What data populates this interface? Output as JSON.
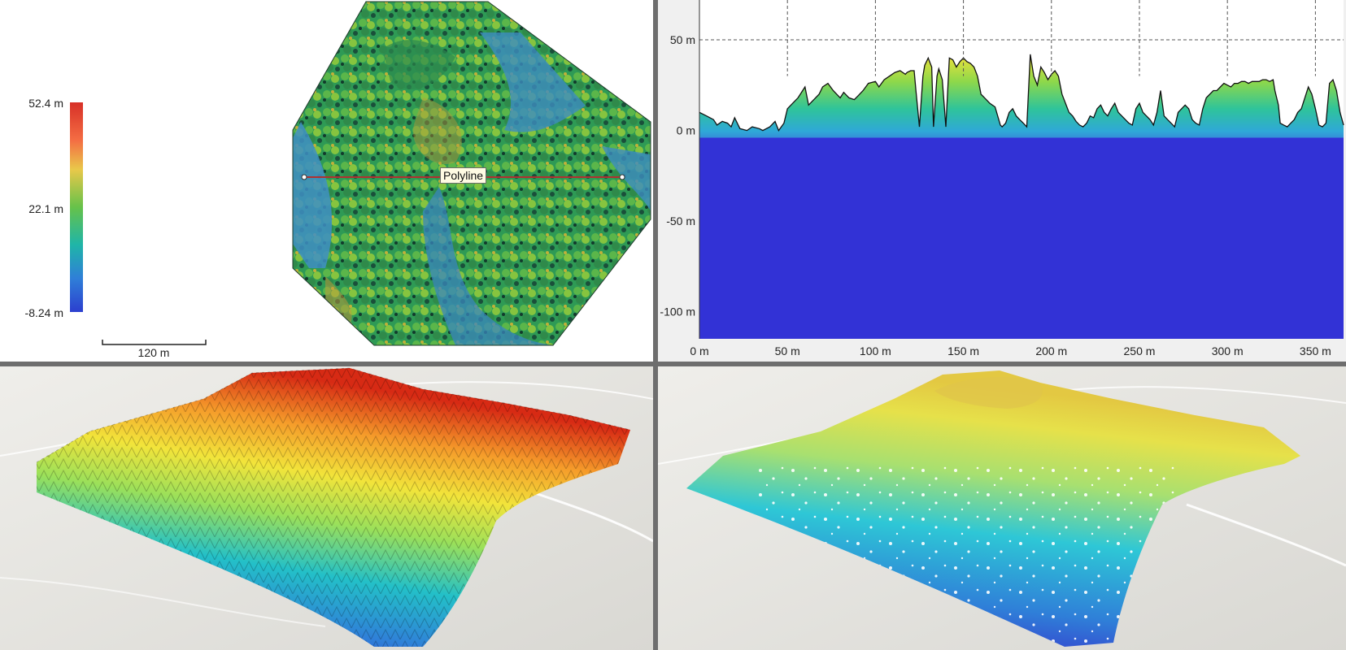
{
  "map_view": {
    "legend": {
      "max_label": "52.4 m",
      "mid_label": "22.1 m",
      "min_label": "-8.24 m",
      "colors": [
        "#d73027",
        "#f46d43",
        "#fdae61",
        "#d9ef45",
        "#66c24a",
        "#1fb5a8",
        "#2f7fd8",
        "#2c3fcf"
      ]
    },
    "scale_bar_label": "120 m",
    "polyline_label": "Polyline",
    "line_color": "#b03030"
  },
  "profile_view": {
    "ground_color": "#3232d6",
    "grid_color": "#555555",
    "chart_data": {
      "type": "area",
      "title": "",
      "xlabel": "",
      "ylabel": "",
      "xlim": [
        0,
        366
      ],
      "ylim": [
        -115,
        72
      ],
      "x_ticks": [
        0,
        50,
        100,
        150,
        200,
        250,
        300,
        350
      ],
      "x_tick_labels": [
        "0 m",
        "50 m",
        "100 m",
        "150 m",
        "200 m",
        "250 m",
        "300 m",
        "350 m"
      ],
      "y_ticks": [
        50,
        0,
        -50,
        -100
      ],
      "y_tick_labels": [
        "50 m",
        "0 m",
        "-50 m",
        "-100 m"
      ],
      "grid": "dashed",
      "series": [
        {
          "x": [
            0,
            4,
            8,
            10,
            13,
            16,
            18,
            20,
            23,
            27,
            30,
            34,
            36,
            40,
            43,
            45,
            48,
            50,
            53,
            56,
            60,
            62,
            65,
            68,
            70,
            73,
            76,
            80,
            82,
            85,
            88,
            90,
            93,
            96,
            100,
            102,
            105,
            108,
            111,
            114,
            117,
            118,
            120,
            122,
            123,
            125,
            127,
            128,
            130,
            132,
            133,
            135,
            136,
            138,
            140,
            142,
            144,
            146,
            148,
            150,
            152,
            154,
            156,
            158,
            160,
            162,
            165,
            168,
            171,
            172,
            174,
            176,
            178,
            180,
            182,
            184,
            186,
            188,
            190,
            192,
            194,
            196,
            198,
            200,
            202,
            204,
            206,
            208,
            210,
            212,
            214,
            216,
            218,
            220,
            222,
            224,
            226,
            228,
            230,
            232,
            234,
            236,
            238,
            240,
            242,
            244,
            246,
            248,
            250,
            252,
            254,
            256,
            258,
            260,
            262,
            264,
            266,
            268,
            270,
            272,
            274,
            276,
            278,
            280,
            282,
            284,
            286,
            288,
            290,
            292,
            294,
            296,
            298,
            300,
            302,
            304,
            306,
            308,
            310,
            312,
            314,
            316,
            318,
            320,
            322,
            324,
            326,
            327,
            329,
            330,
            332,
            334,
            336,
            338,
            340,
            342,
            344,
            346,
            348,
            350,
            352,
            354,
            356,
            358,
            360,
            362,
            364,
            366
          ],
          "y": [
            10,
            8,
            6,
            3,
            5,
            4,
            2,
            7,
            1,
            0,
            2,
            1,
            0,
            2,
            5,
            0,
            4,
            12,
            15,
            18,
            24,
            14,
            17,
            20,
            24,
            26,
            22,
            18,
            21,
            18,
            17,
            19,
            22,
            26,
            27,
            24,
            28,
            30,
            32,
            33,
            31,
            32,
            33,
            33,
            22,
            2,
            30,
            36,
            40,
            35,
            2,
            30,
            34,
            28,
            2,
            40,
            39,
            35,
            38,
            40,
            38,
            37,
            35,
            30,
            20,
            18,
            15,
            13,
            3,
            2,
            4,
            10,
            12,
            8,
            6,
            4,
            2,
            42,
            30,
            25,
            35,
            32,
            28,
            31,
            33,
            30,
            20,
            15,
            10,
            8,
            5,
            3,
            2,
            4,
            8,
            7,
            12,
            14,
            10,
            8,
            12,
            15,
            10,
            8,
            6,
            4,
            3,
            12,
            15,
            10,
            8,
            6,
            3,
            10,
            22,
            8,
            6,
            4,
            2,
            10,
            12,
            14,
            12,
            6,
            4,
            3,
            12,
            18,
            20,
            22,
            22,
            24,
            26,
            25,
            24,
            26,
            26,
            27,
            27,
            26,
            27,
            27,
            27,
            28,
            28,
            27,
            28,
            22,
            14,
            4,
            3,
            2,
            4,
            6,
            10,
            12,
            18,
            24,
            20,
            12,
            3,
            2,
            4,
            26,
            28,
            22,
            10,
            3
          ]
        }
      ]
    }
  },
  "canopy_view": {
    "colors": [
      "#2b1cc4",
      "#2f7fd8",
      "#23c0c8",
      "#9ae05a",
      "#f2e43a",
      "#f59b2a",
      "#d72a14"
    ]
  },
  "ground_view": {
    "colors": [
      "#3a1cc8",
      "#2f7fd8",
      "#2ec7d6",
      "#a8e070",
      "#e6e14a",
      "#e3c842"
    ]
  }
}
